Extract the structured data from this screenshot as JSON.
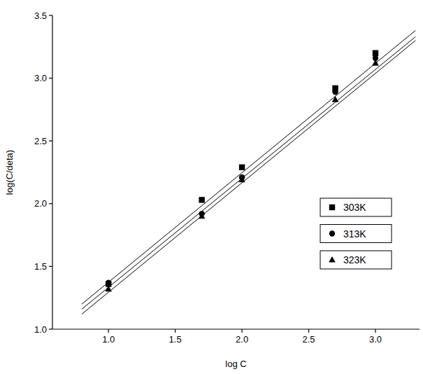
{
  "chart_data": {
    "type": "scatter",
    "x_label": "log C",
    "y_label": "log(C/deta)",
    "x": [
      1.0,
      1.699,
      2.0,
      2.699,
      3.0
    ],
    "series": [
      {
        "name": "303K",
        "color": "#000000",
        "marker": "square",
        "values": [
          1.36,
          2.03,
          2.29,
          2.92,
          3.2
        ],
        "fit": {
          "x": [
            0.8,
            3.3
          ],
          "values": [
            1.2,
            3.38
          ]
        }
      },
      {
        "name": "313K",
        "color": "#000000",
        "marker": "circle",
        "values": [
          1.37,
          1.92,
          2.21,
          2.89,
          3.16
        ],
        "fit": {
          "x": [
            0.8,
            3.3
          ],
          "values": [
            1.16,
            3.33
          ]
        }
      },
      {
        "name": "323K",
        "color": "#000000",
        "marker": "triangle",
        "values": [
          1.32,
          1.9,
          2.19,
          2.83,
          3.12
        ],
        "fit": {
          "x": [
            0.8,
            3.3
          ],
          "values": [
            1.12,
            3.3
          ]
        }
      }
    ],
    "xlim": [
      0.58,
      3.33
    ],
    "ylim": [
      1.0,
      3.5
    ],
    "xticks": [
      {
        "value": 1,
        "label": "1.0"
      },
      {
        "value": 1.5,
        "label": "1.5"
      },
      {
        "value": 2,
        "label": "2.0"
      },
      {
        "value": 2.5,
        "label": "2.5"
      },
      {
        "value": 3,
        "label": "3.0"
      }
    ],
    "yticks": [
      {
        "value": 1,
        "label": "1.0"
      },
      {
        "value": 1.5,
        "label": "1.5"
      },
      {
        "value": 2,
        "label": "2.0"
      },
      {
        "value": 2.5,
        "label": "2.5"
      },
      {
        "value": 3,
        "label": "3.0"
      },
      {
        "value": 3.5,
        "label": "3.5"
      }
    ],
    "legend": "right",
    "grid": false
  }
}
